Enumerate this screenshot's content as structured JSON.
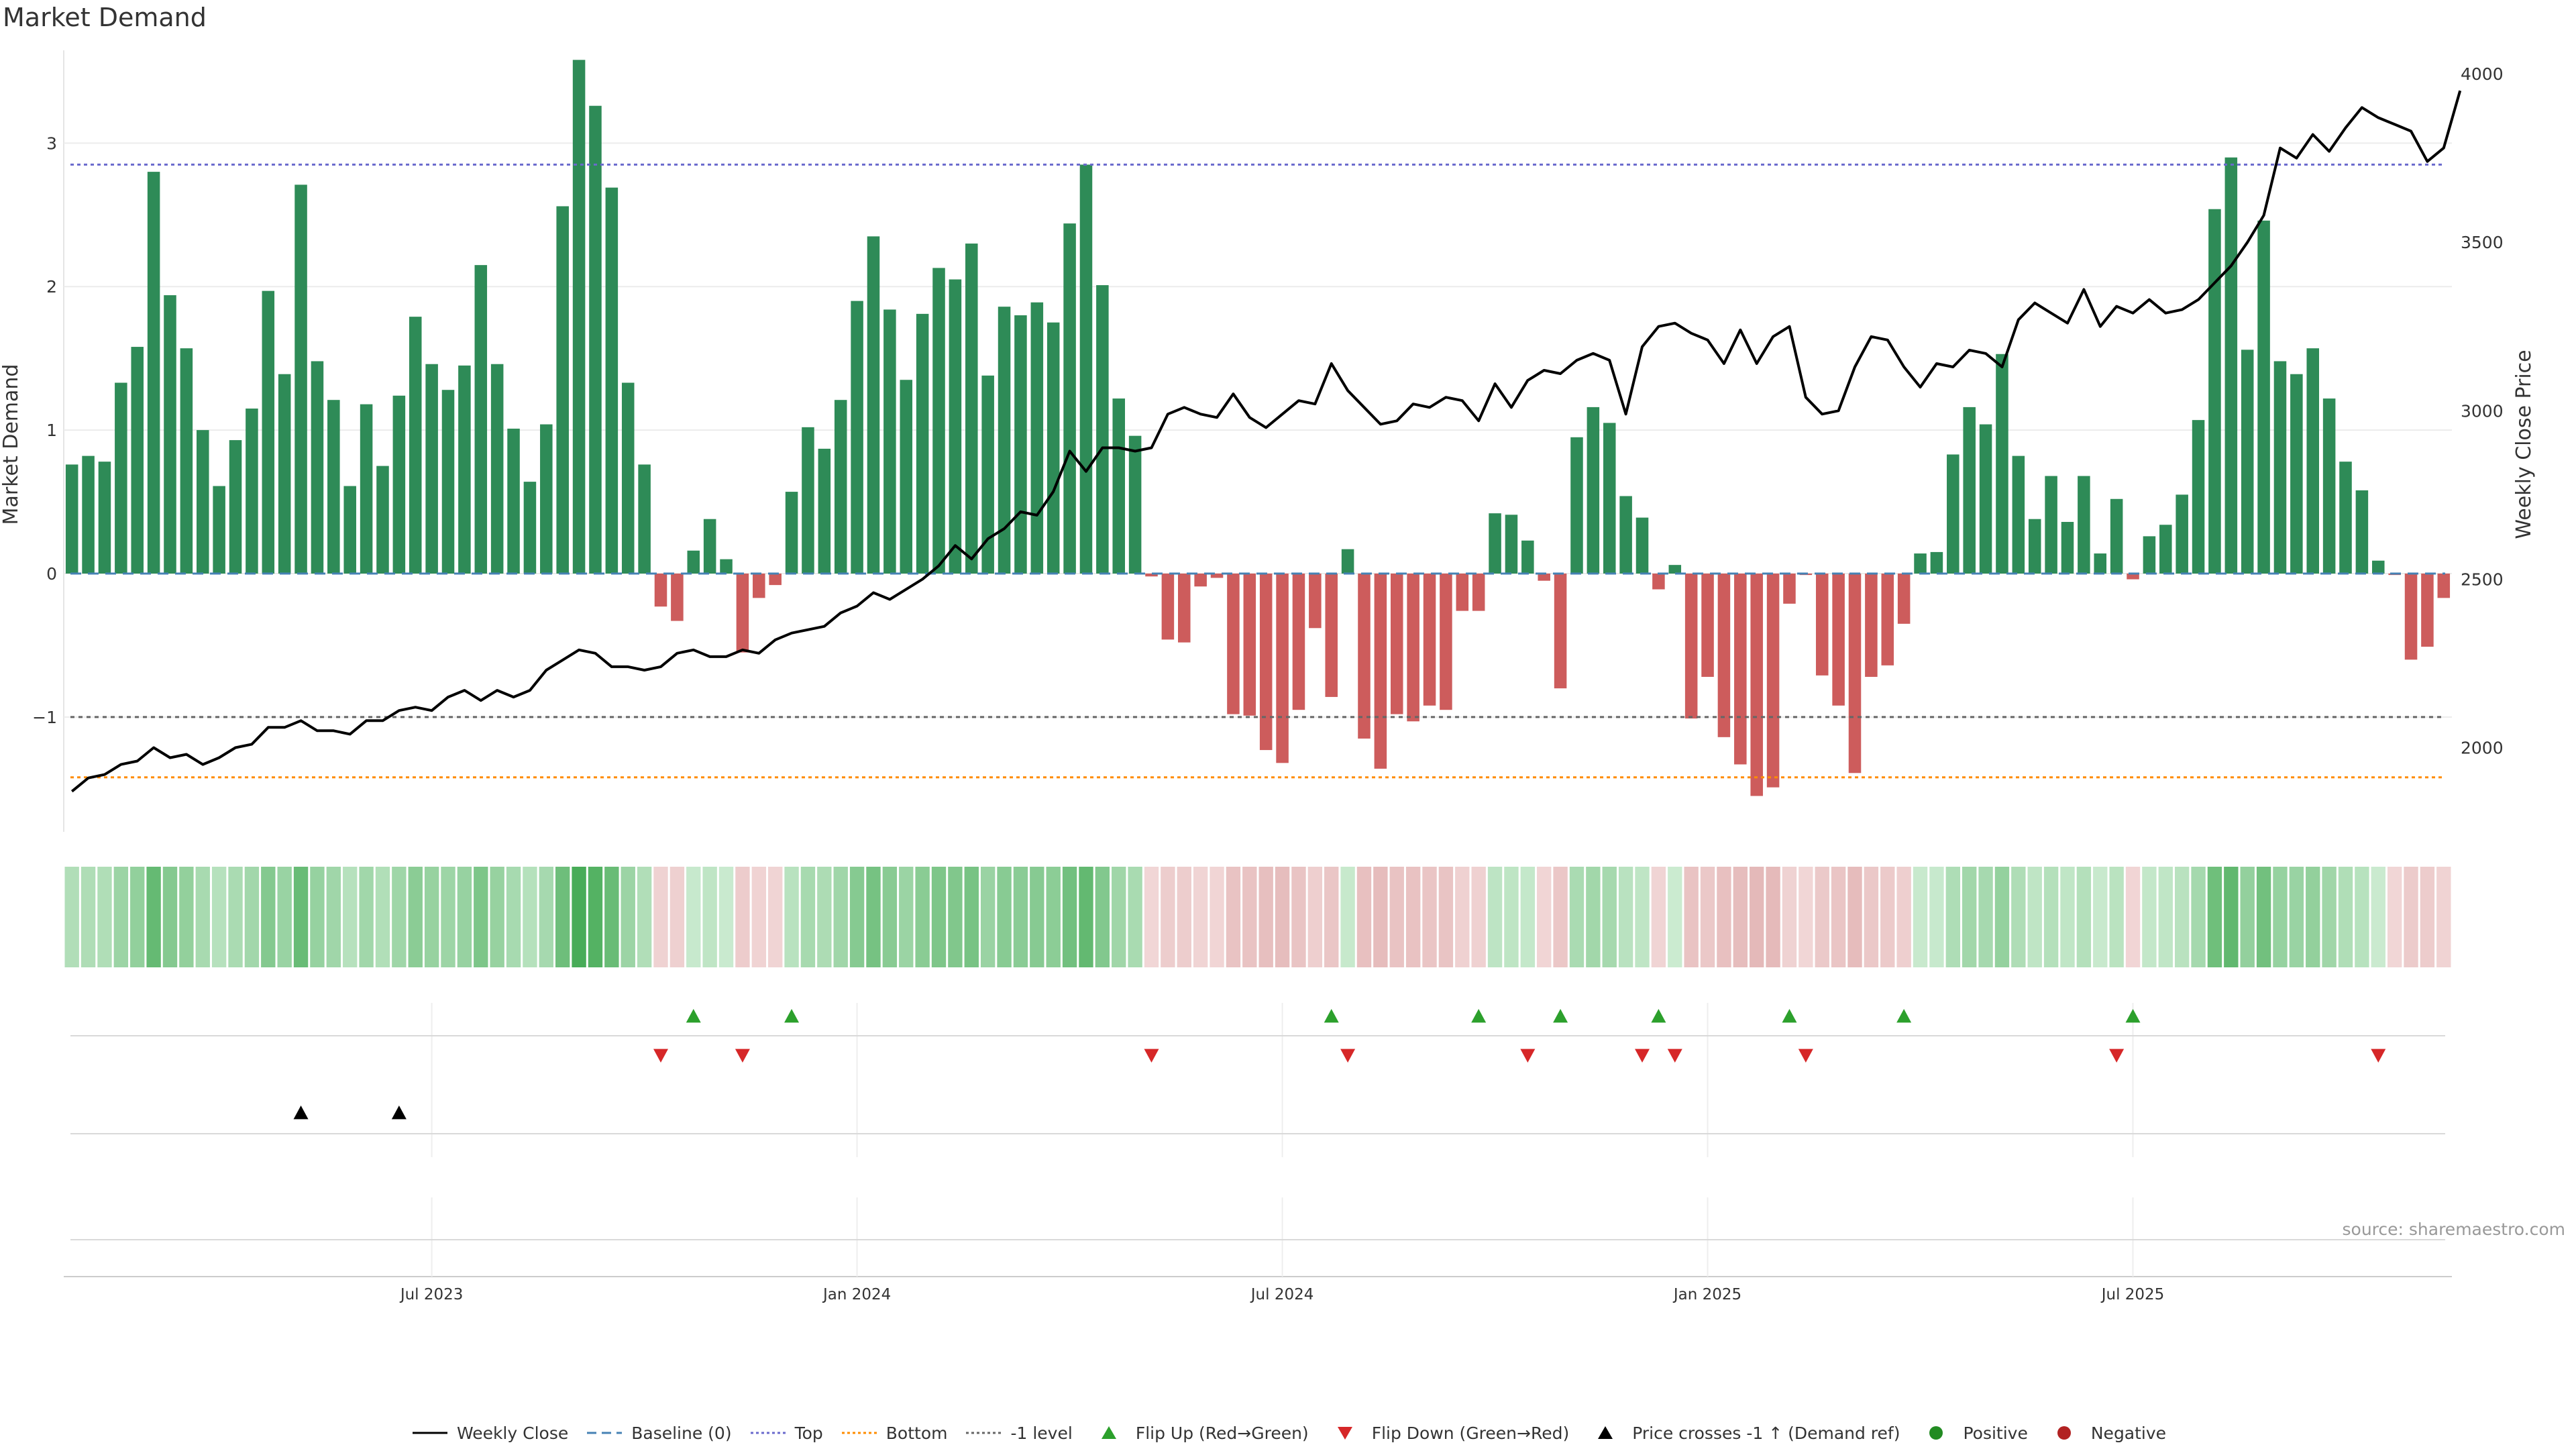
{
  "title": "Market Demand",
  "source_note": "source: sharemaestro.com",
  "chart_data": {
    "type": "bar",
    "title": "Market Demand",
    "ylabel": "Market Demand",
    "y2label": "Weekly Close Price",
    "ylim": [
      -1.8,
      3.6
    ],
    "y2lim": [
      1750,
      4050
    ],
    "y_ticks": [
      -1,
      0,
      1,
      2,
      3
    ],
    "y2_ticks": [
      2000,
      2500,
      3000,
      3500,
      4000
    ],
    "x_tick_labels": [
      {
        "label": "Jul 2023",
        "week": 22
      },
      {
        "label": "Jan 2024",
        "week": 48
      },
      {
        "label": "Jul 2024",
        "week": 74
      },
      {
        "label": "Jan 2025",
        "week": 100
      },
      {
        "label": "Jul 2025",
        "week": 126
      }
    ],
    "reference_lines": {
      "top": 2.85,
      "bottom": -1.42,
      "minus_one": -1.0,
      "baseline": 0
    },
    "colors": {
      "positive": "#2e8b57",
      "negative": "#cd5c5c",
      "price": "#000000",
      "top_line": "#6a6acd",
      "bottom_line": "#ff8c00",
      "minus_one_line": "#666666",
      "baseline_line": "#4682b4",
      "flip_up": "#2ca02c",
      "flip_down": "#d62728",
      "price_cross": "#000000",
      "legend_positive": "#228b22",
      "legend_negative": "#b22222"
    },
    "series": [
      {
        "name": "Market Demand",
        "values": [
          0.76,
          0.82,
          0.78,
          1.33,
          1.58,
          2.8,
          1.94,
          1.57,
          1.0,
          0.61,
          0.93,
          1.15,
          1.97,
          1.39,
          2.71,
          1.48,
          1.21,
          0.61,
          1.18,
          0.75,
          1.24,
          1.79,
          1.46,
          1.28,
          1.45,
          2.15,
          1.46,
          1.01,
          0.64,
          1.04,
          2.56,
          3.58,
          3.26,
          2.69,
          1.33,
          0.76,
          -0.23,
          -0.33,
          0.16,
          0.38,
          0.1,
          -0.55,
          -0.17,
          -0.08,
          0.57,
          1.02,
          0.87,
          1.21,
          1.9,
          2.35,
          1.84,
          1.35,
          1.81,
          2.13,
          2.05,
          2.3,
          1.38,
          1.86,
          1.8,
          1.89,
          1.75,
          2.44,
          2.85,
          2.01,
          1.22,
          0.96,
          -0.02,
          -0.46,
          -0.48,
          -0.09,
          -0.03,
          -0.98,
          -0.99,
          -1.23,
          -1.32,
          -0.95,
          -0.38,
          -0.86,
          0.17,
          -1.15,
          -1.36,
          -0.98,
          -1.03,
          -0.92,
          -0.95,
          -0.26,
          -0.26,
          0.42,
          0.41,
          0.23,
          -0.05,
          -0.8,
          0.95,
          1.16,
          1.05,
          0.54,
          0.39,
          -0.11,
          0.06,
          -1.01,
          -0.72,
          -1.14,
          -1.33,
          -1.55,
          -1.49,
          -0.21,
          -0.01,
          -0.71,
          -0.92,
          -1.39,
          -0.72,
          -0.64,
          -0.35,
          0.14,
          0.15,
          0.83,
          1.16,
          1.04,
          1.53,
          0.82,
          0.38,
          0.68,
          0.36,
          0.68,
          0.14,
          0.52,
          -0.04,
          0.26,
          0.34,
          0.55,
          1.07,
          2.54,
          2.9,
          1.56,
          2.46,
          1.48,
          1.39,
          1.57,
          1.22,
          0.78,
          0.58,
          0.09,
          -0.01,
          -0.6,
          -0.51,
          -0.17
        ]
      },
      {
        "name": "Weekly Close",
        "values": [
          1870,
          1910,
          1920,
          1950,
          1960,
          2000,
          1970,
          1980,
          1950,
          1970,
          2000,
          2010,
          2060,
          2060,
          2080,
          2050,
          2050,
          2040,
          2080,
          2080,
          2110,
          2120,
          2110,
          2150,
          2170,
          2140,
          2170,
          2150,
          2170,
          2230,
          2260,
          2290,
          2280,
          2240,
          2240,
          2230,
          2240,
          2280,
          2290,
          2270,
          2270,
          2290,
          2280,
          2320,
          2340,
          2350,
          2360,
          2400,
          2420,
          2460,
          2440,
          2470,
          2500,
          2540,
          2600,
          2560,
          2620,
          2650,
          2700,
          2690,
          2760,
          2880,
          2820,
          2890,
          2890,
          2880,
          2890,
          2990,
          3010,
          2990,
          2980,
          3050,
          2980,
          2950,
          2990,
          3030,
          3020,
          3140,
          3060,
          3010,
          2960,
          2970,
          3020,
          3010,
          3040,
          3030,
          2970,
          3080,
          3010,
          3090,
          3120,
          3110,
          3150,
          3170,
          3150,
          2990,
          3190,
          3250,
          3260,
          3230,
          3210,
          3140,
          3240,
          3140,
          3220,
          3250,
          3040,
          2990,
          3000,
          3130,
          3220,
          3210,
          3130,
          3070,
          3140,
          3130,
          3180,
          3170,
          3130,
          3270,
          3320,
          3290,
          3260,
          3360,
          3250,
          3310,
          3290,
          3330,
          3290,
          3300,
          3330,
          3380,
          3430,
          3500,
          3580,
          3780,
          3750,
          3820,
          3770,
          3840,
          3900,
          3870,
          3850,
          3830,
          3740,
          3780,
          3950
        ]
      }
    ],
    "flip_up_weeks": [
      38,
      44,
      77,
      86,
      91,
      97,
      105,
      112,
      126
    ],
    "flip_down_weeks": [
      36,
      41,
      66,
      78,
      89,
      96,
      98,
      106,
      125,
      141
    ],
    "price_cross_weeks": [
      14,
      20
    ],
    "legend": [
      {
        "label": "Weekly Close",
        "kind": "line-solid",
        "color": "#000000"
      },
      {
        "label": "Baseline (0)",
        "kind": "line-dash",
        "color": "#4682b4"
      },
      {
        "label": "Top",
        "kind": "line-dot",
        "color": "#6a6acd"
      },
      {
        "label": "Bottom",
        "kind": "line-dot",
        "color": "#ff8c00"
      },
      {
        "label": "-1 level",
        "kind": "line-dot",
        "color": "#666666"
      },
      {
        "label": "Flip Up (Red→Green)",
        "kind": "tri-up",
        "color": "#2ca02c"
      },
      {
        "label": "Flip Down (Green→Red)",
        "kind": "tri-down",
        "color": "#d62728"
      },
      {
        "label": "Price crosses -1 ↑ (Demand ref)",
        "kind": "tri-up",
        "color": "#000000"
      },
      {
        "label": "Positive",
        "kind": "dot",
        "color": "#228b22"
      },
      {
        "label": "Negative",
        "kind": "dot",
        "color": "#b22222"
      }
    ]
  }
}
